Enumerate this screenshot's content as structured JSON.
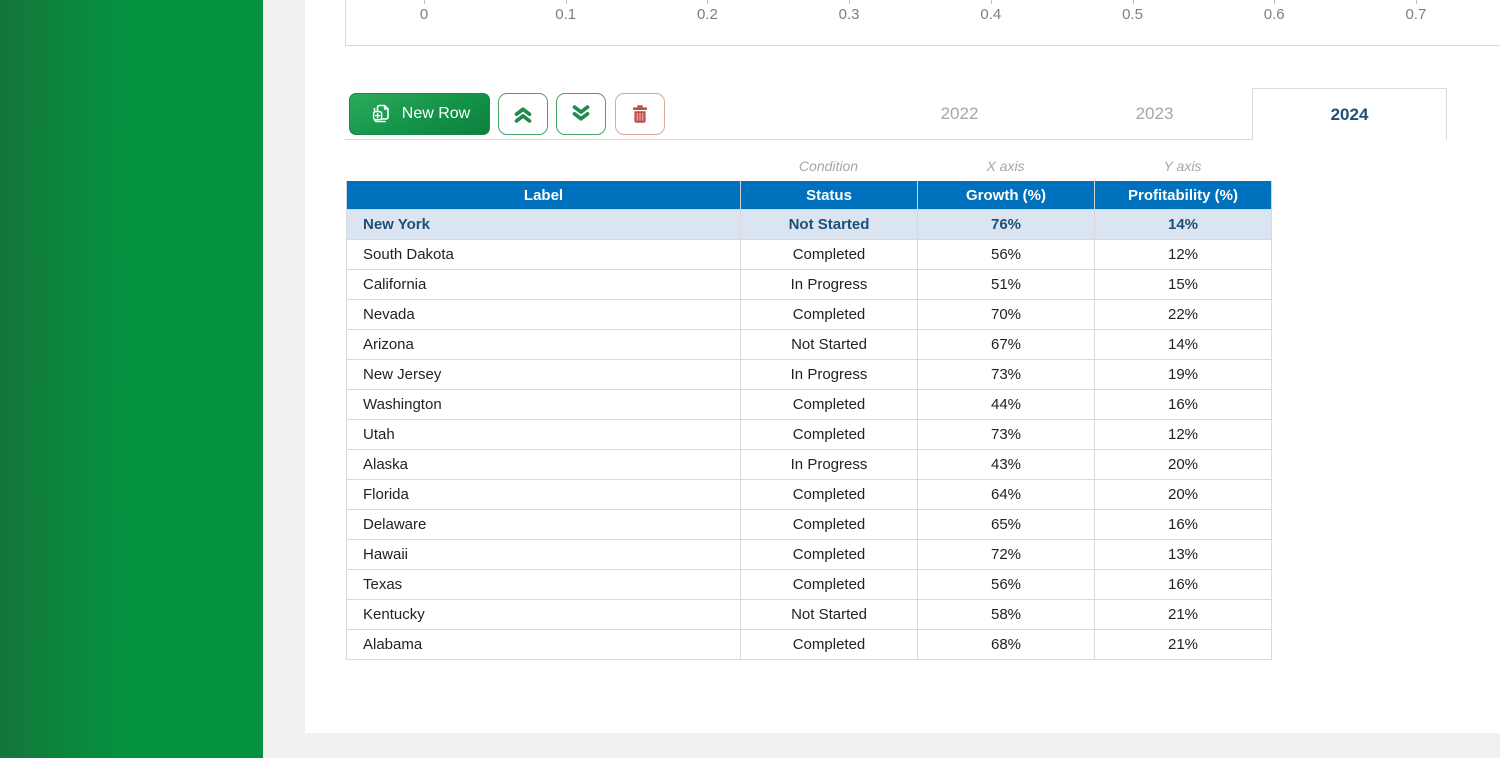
{
  "chart": {
    "x_tick_labels": [
      "0",
      "0.1",
      "0.2",
      "0.3",
      "0.4",
      "0.5",
      "0.6",
      "0.7"
    ]
  },
  "toolbar": {
    "new_row_label": "New Row"
  },
  "tabs": [
    {
      "label": "2022",
      "active": false
    },
    {
      "label": "2023",
      "active": false
    },
    {
      "label": "2024",
      "active": true
    }
  ],
  "table": {
    "axis_role_labels": [
      "Condition",
      "X axis",
      "Y axis"
    ],
    "columns": [
      "Label",
      "Status",
      "Growth (%)",
      "Profitability (%)"
    ],
    "rows": [
      {
        "label": "New York",
        "status": "Not Started",
        "growth": "76%",
        "profitability": "14%",
        "selected": true
      },
      {
        "label": "South Dakota",
        "status": "Completed",
        "growth": "56%",
        "profitability": "12%",
        "selected": false
      },
      {
        "label": "California",
        "status": "In Progress",
        "growth": "51%",
        "profitability": "15%",
        "selected": false
      },
      {
        "label": "Nevada",
        "status": "Completed",
        "growth": "70%",
        "profitability": "22%",
        "selected": false
      },
      {
        "label": "Arizona",
        "status": "Not Started",
        "growth": "67%",
        "profitability": "14%",
        "selected": false
      },
      {
        "label": "New Jersey",
        "status": "In Progress",
        "growth": "73%",
        "profitability": "19%",
        "selected": false
      },
      {
        "label": "Washington",
        "status": "Completed",
        "growth": "44%",
        "profitability": "16%",
        "selected": false
      },
      {
        "label": "Utah",
        "status": "Completed",
        "growth": "73%",
        "profitability": "12%",
        "selected": false
      },
      {
        "label": "Alaska",
        "status": "In Progress",
        "growth": "43%",
        "profitability": "20%",
        "selected": false
      },
      {
        "label": "Florida",
        "status": "Completed",
        "growth": "64%",
        "profitability": "20%",
        "selected": false
      },
      {
        "label": "Delaware",
        "status": "Completed",
        "growth": "65%",
        "profitability": "16%",
        "selected": false
      },
      {
        "label": "Hawaii",
        "status": "Completed",
        "growth": "72%",
        "profitability": "13%",
        "selected": false
      },
      {
        "label": "Texas",
        "status": "Completed",
        "growth": "56%",
        "profitability": "16%",
        "selected": false
      },
      {
        "label": "Kentucky",
        "status": "Not Started",
        "growth": "58%",
        "profitability": "21%",
        "selected": false
      },
      {
        "label": "Alabama",
        "status": "Completed",
        "growth": "68%",
        "profitability": "21%",
        "selected": false
      }
    ]
  },
  "colors": {
    "sidebar_green": "#049140",
    "header_blue": "#0071bd",
    "selected_row_bg": "#dbe5f1",
    "selected_row_text": "#1f4e79",
    "button_green": "#149449",
    "danger_red": "#c0504d",
    "inactive_tab_gray": "#a6a6a6",
    "grid_border_gray": "#d9d9d9"
  }
}
